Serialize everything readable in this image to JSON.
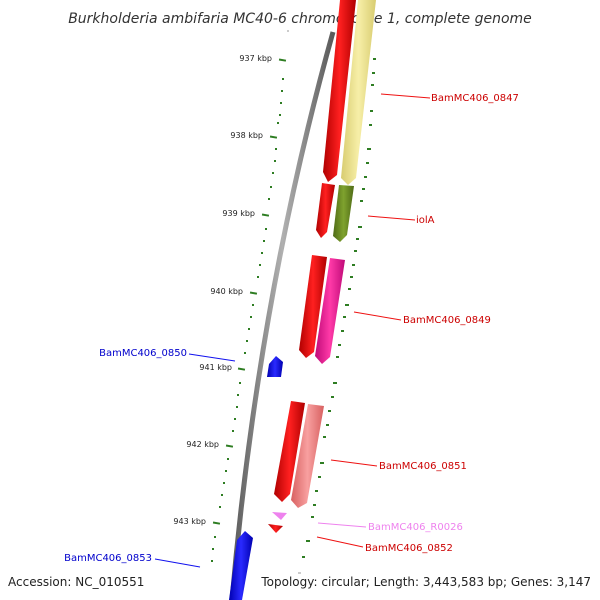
{
  "title": "Burkholderia ambifaria MC40-6 chromosome 1, complete genome",
  "footer": {
    "accession": "Accession: NC_010551",
    "topology": "Topology: circular; Length: 3,443,583 bp; Genes: 3,147"
  },
  "colors": {
    "backbone": "#8a8a8a",
    "tick": "#2e7d22",
    "forward_red": "#ee1111",
    "reverse_blue": "#1111ee",
    "yellow": "#f0e68c",
    "olive": "#6b8e23",
    "magenta": "#ee1493",
    "salmon": "#f08080",
    "pink": "#ee82ee"
  },
  "ticks": [
    {
      "label": "937 kbp"
    },
    {
      "label": "938 kbp"
    },
    {
      "label": "939 kbp"
    },
    {
      "label": "940 kbp"
    },
    {
      "label": "941 kbp"
    },
    {
      "label": "942 kbp"
    },
    {
      "label": "943 kbp"
    }
  ],
  "genes": [
    {
      "name": "BamMC406_0847",
      "color": "#ee1111"
    },
    {
      "name": "iolA",
      "color": "#ee1111"
    },
    {
      "name": "BamMC406_0849",
      "color": "#ee1111"
    },
    {
      "name": "BamMC406_0850",
      "color": "#1111ee"
    },
    {
      "name": "BamMC406_0851",
      "color": "#ee1111"
    },
    {
      "name": "BamMC406_R0026",
      "color": "#ee82ee"
    },
    {
      "name": "BamMC406_0852",
      "color": "#ee1111"
    },
    {
      "name": "BamMC406_0853",
      "color": "#1111ee"
    }
  ]
}
